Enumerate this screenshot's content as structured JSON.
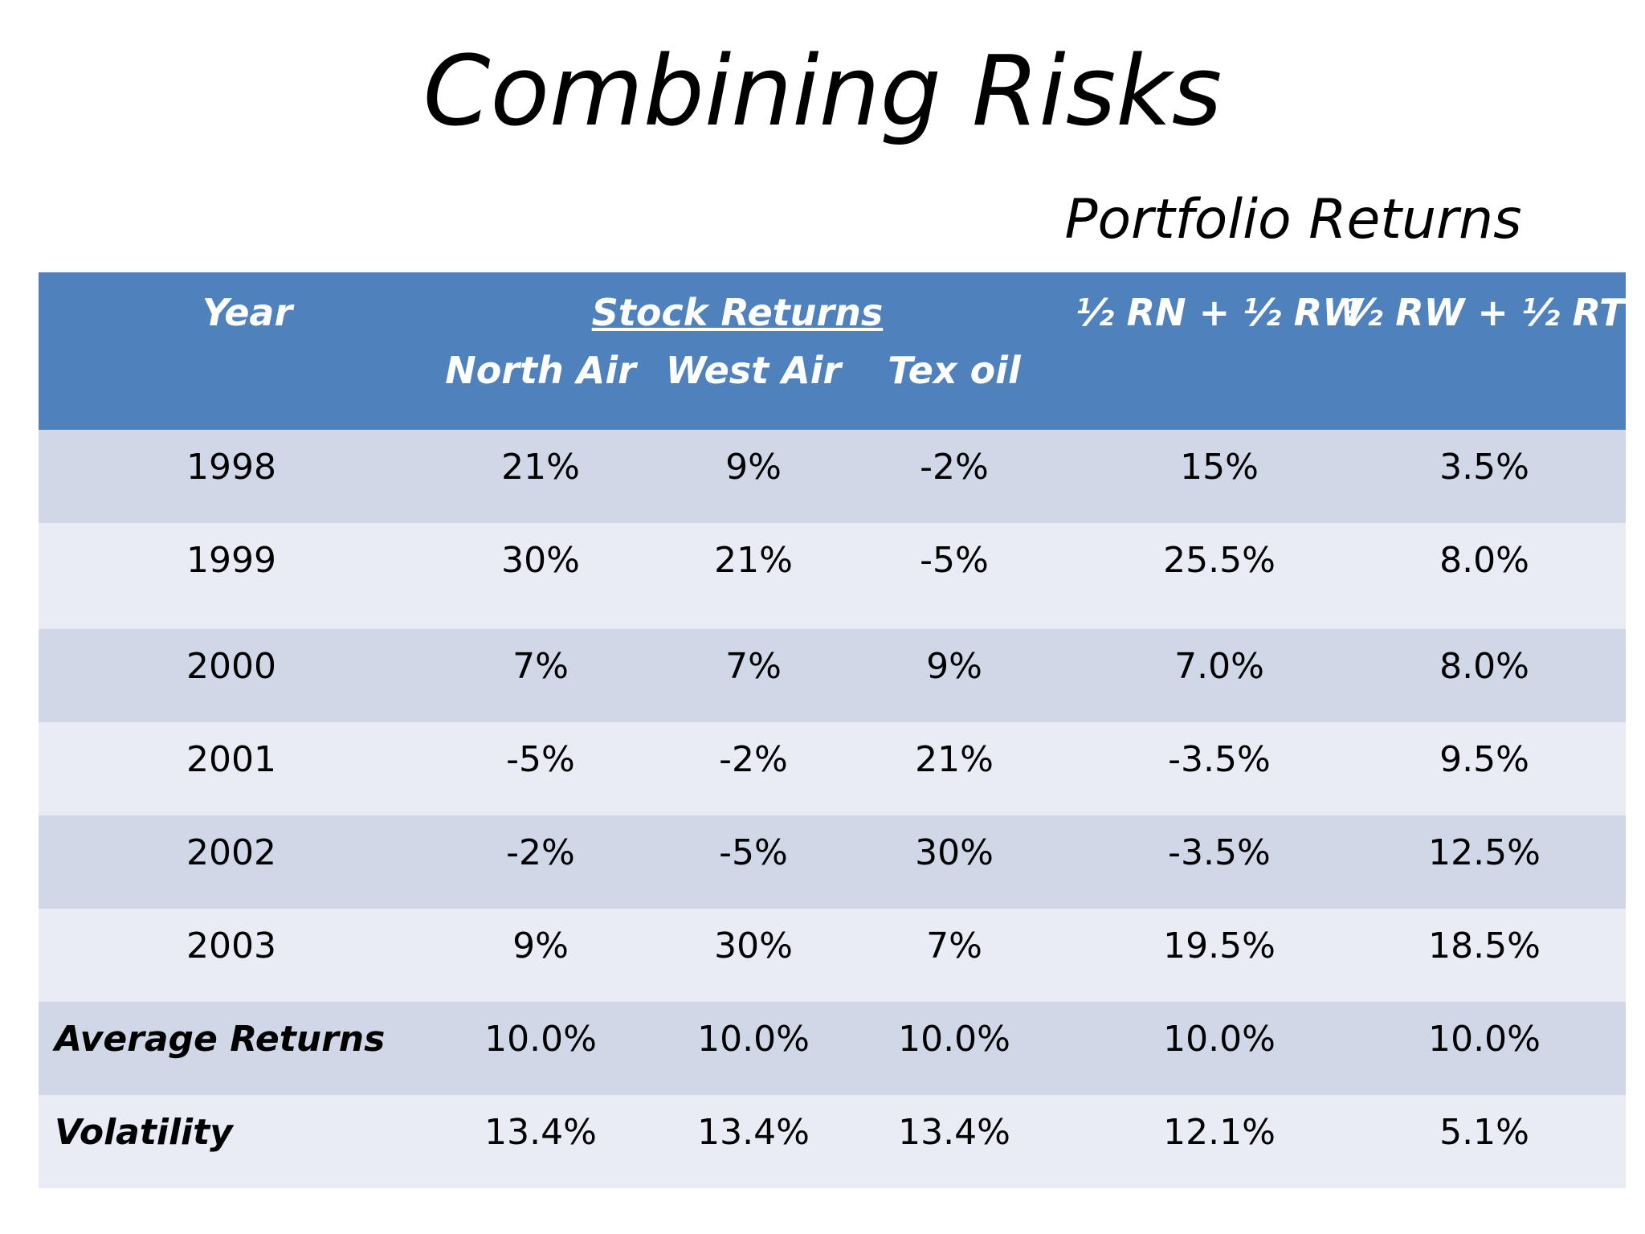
{
  "slide": {
    "title": "Combining Risks",
    "subtitle": "Portfolio Returns",
    "colors": {
      "header_bg": "#4f81bd",
      "row_dark": "#d0d8e8",
      "row_light": "#e9ebf5"
    }
  },
  "table": {
    "headers": {
      "year": "Year",
      "stock_returns": "Stock Returns",
      "north_air": "North Air",
      "west_air": "West Air",
      "tex_oil": "Tex oil",
      "portfolio_rn_rw": "½ RN + ½  RW",
      "portfolio_rw_rt": "½ RW + ½  RT"
    },
    "rows": [
      {
        "year": "1998",
        "north_air": "21%",
        "west_air": "9%",
        "tex_oil": "-2%",
        "rn_rw": "15%",
        "rw_rt": "3.5%"
      },
      {
        "year": "1999",
        "north_air": "30%",
        "west_air": "21%",
        "tex_oil": "-5%",
        "rn_rw": "25.5%",
        "rw_rt": "8.0%"
      },
      {
        "year": "2000",
        "north_air": "7%",
        "west_air": "7%",
        "tex_oil": "9%",
        "rn_rw": "7.0%",
        "rw_rt": "8.0%"
      },
      {
        "year": "2001",
        "north_air": "-5%",
        "west_air": "-2%",
        "tex_oil": "21%",
        "rn_rw": "-3.5%",
        "rw_rt": "9.5%"
      },
      {
        "year": "2002",
        "north_air": "-2%",
        "west_air": "-5%",
        "tex_oil": "30%",
        "rn_rw": "-3.5%",
        "rw_rt": "12.5%"
      },
      {
        "year": "2003",
        "north_air": "9%",
        "west_air": "30%",
        "tex_oil": "7%",
        "rn_rw": "19.5%",
        "rw_rt": "18.5%"
      }
    ],
    "average": {
      "label": "Average Returns",
      "north_air": "10.0%",
      "west_air": "10.0%",
      "tex_oil": "10.0%",
      "rn_rw": "10.0%",
      "rw_rt": "10.0%"
    },
    "volatility": {
      "label": "Volatility",
      "north_air": "13.4%",
      "west_air": "13.4%",
      "tex_oil": "13.4%",
      "rn_rw": "12.1%",
      "rw_rt": "5.1%"
    }
  }
}
